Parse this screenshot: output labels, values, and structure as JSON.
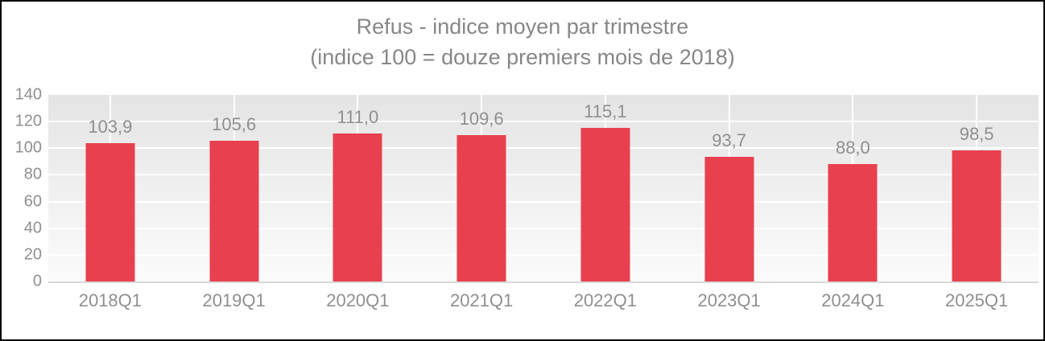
{
  "chart_data": {
    "type": "bar",
    "title": "Refus - indice moyen par trimestre",
    "subtitle": "(indice 100 = douze premiers mois de 2018)",
    "categories": [
      "2018Q1",
      "2019Q1",
      "2020Q1",
      "2021Q1",
      "2022Q1",
      "2023Q1",
      "2024Q1",
      "2025Q1"
    ],
    "values": [
      103.9,
      105.6,
      111.0,
      109.6,
      115.1,
      93.7,
      88.0,
      98.5
    ],
    "value_labels": [
      "103,9",
      "105,6",
      "111,0",
      "109,6",
      "115,1",
      "93,7",
      "88,0",
      "98,5"
    ],
    "xlabel": "",
    "ylabel": "",
    "ylim": [
      0,
      140
    ],
    "y_ticks": [
      0,
      20,
      40,
      60,
      80,
      100,
      120,
      140
    ],
    "grid": true,
    "legend": "none",
    "decimal_separator": ",",
    "colors": {
      "bar": "#e8404e",
      "title_text": "#878787",
      "axis_text": "#8f8f8f",
      "value_label_text": "#8f8f8f",
      "gridline": "#ffffff",
      "axis_line": "#d9d9d9",
      "plot_gradient_top": "#e4e4e4",
      "plot_gradient_bottom": "#fbfbfb",
      "frame_border": "#000000",
      "background": "#ffffff"
    }
  }
}
